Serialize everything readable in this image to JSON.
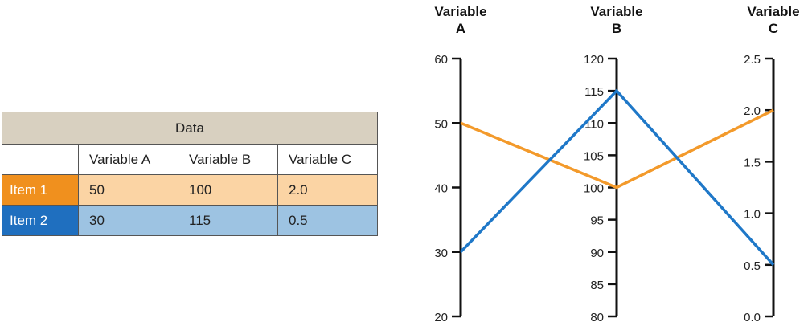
{
  "table": {
    "title": "Data",
    "columns": [
      "Variable A",
      "Variable B",
      "Variable C"
    ],
    "rows": [
      {
        "label": "Item 1",
        "values": [
          "50",
          "100",
          "2.0"
        ],
        "label_color": "#f0901e",
        "row_color": "#fbd4a4"
      },
      {
        "label": "Item 2",
        "values": [
          "30",
          "115",
          "0.5"
        ],
        "label_color": "#1f6fbf",
        "row_color": "#9dc3e2"
      }
    ]
  },
  "chart_data": {
    "type": "parallel-coordinates",
    "axes": [
      {
        "name": "Variable A",
        "title_lines": [
          "Variable",
          "A"
        ],
        "ticks": [
          "20",
          "30",
          "40",
          "50",
          "60"
        ],
        "range": [
          20,
          60
        ]
      },
      {
        "name": "Variable B",
        "title_lines": [
          "Variable",
          "B"
        ],
        "ticks": [
          "80",
          "85",
          "90",
          "95",
          "100",
          "105",
          "110",
          "115",
          "120"
        ],
        "range": [
          80,
          120
        ]
      },
      {
        "name": "Variable C",
        "title_lines": [
          "Variable",
          "C"
        ],
        "ticks": [
          "0.0",
          "0.5",
          "1.0",
          "1.5",
          "2.0",
          "2.5"
        ],
        "range": [
          0,
          2.5
        ]
      }
    ],
    "series": [
      {
        "name": "Item 1",
        "values": [
          50,
          100,
          2.0
        ],
        "color": "#f39a2b"
      },
      {
        "name": "Item 2",
        "values": [
          30,
          115,
          0.5
        ],
        "color": "#1f78c8"
      }
    ]
  }
}
